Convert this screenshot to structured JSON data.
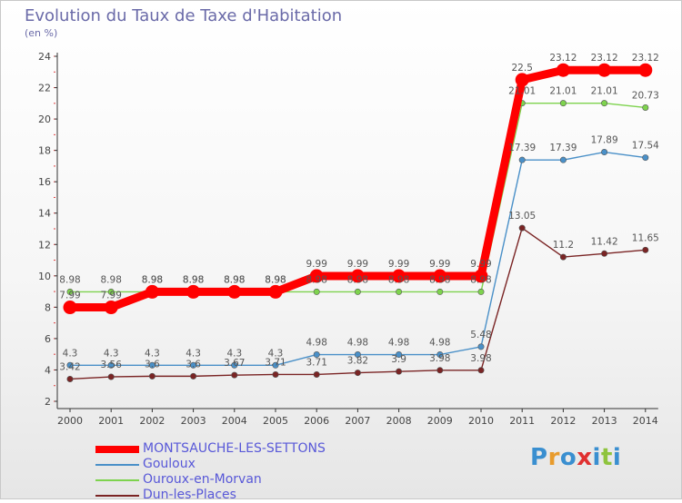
{
  "chart_data": {
    "type": "line",
    "title": "Evolution du Taux de Taxe d'Habitation",
    "ylabel": "(en %)",
    "ylim": [
      2,
      24
    ],
    "yticks": [
      2,
      4,
      6,
      8,
      10,
      12,
      14,
      16,
      18,
      20,
      22,
      24
    ],
    "x": [
      "2000",
      "2001",
      "2002",
      "2003",
      "2004",
      "2005",
      "2006",
      "2007",
      "2008",
      "2009",
      "2010",
      "2011",
      "2012",
      "2013",
      "2014"
    ],
    "grid": false,
    "legend_position": "bottom-left",
    "series": [
      {
        "name": "MONTSAUCHE-LES-SETTONS",
        "color": "#ff0000",
        "values": [
          7.99,
          7.99,
          8.98,
          8.98,
          8.98,
          8.98,
          9.99,
          9.99,
          9.99,
          9.99,
          9.99,
          22.5,
          23.12,
          23.12,
          23.12
        ],
        "labels": [
          "7.99",
          "7.99",
          "8.98",
          "8.98",
          "8.98",
          "8.98",
          "9.99",
          "9.99",
          "9.99",
          "9.99",
          "9.99",
          "22.5",
          "23.12",
          "23.12",
          "23.12"
        ]
      },
      {
        "name": "Gouloux",
        "color": "#4a90c8",
        "values": [
          4.3,
          4.3,
          4.3,
          4.3,
          4.3,
          4.3,
          4.98,
          4.98,
          4.98,
          4.98,
          5.48,
          17.39,
          17.39,
          17.89,
          17.54
        ],
        "labels": [
          "4.3",
          "4.3",
          "4.3",
          "4.3",
          "4.3",
          "4.3",
          "4.98",
          "4.98",
          "4.98",
          "4.98",
          "5.48",
          "17.39",
          "17.39",
          "17.89",
          "17.54"
        ]
      },
      {
        "name": "Ouroux-en-Morvan",
        "color": "#7ed34e",
        "values": [
          8.98,
          8.98,
          8.98,
          8.98,
          8.98,
          8.98,
          8.98,
          8.98,
          8.98,
          8.98,
          8.98,
          21.01,
          21.01,
          21.01,
          20.73
        ],
        "labels": [
          "8.98",
          "8.98",
          "8.98",
          "8.98",
          "8.98",
          "8.98",
          "8.98",
          "8.98",
          "8.98",
          "8.98",
          "8.98",
          "21.01",
          "21.01",
          "21.01",
          "20.73"
        ]
      },
      {
        "name": "Dun-les-Places",
        "color": "#7a2424",
        "values": [
          3.42,
          3.56,
          3.6,
          3.6,
          3.67,
          3.71,
          3.71,
          3.82,
          3.9,
          3.98,
          3.98,
          13.05,
          11.2,
          11.42,
          11.65
        ],
        "labels": [
          "3.42",
          "3.56",
          "3.6",
          "3.6",
          "3.67",
          "3.71",
          "3.71",
          "3.82",
          "3.9",
          "3.98",
          "3.98",
          "13.05",
          "11.2",
          "11.42",
          "11.65"
        ]
      }
    ]
  },
  "legend": [
    {
      "label": "MONTSAUCHE-LES-SETTONS",
      "color": "#ff0000"
    },
    {
      "label": "Gouloux",
      "color": "#4a90c8"
    },
    {
      "label": "Ouroux-en-Morvan",
      "color": "#7ed34e"
    },
    {
      "label": "Dun-les-Places",
      "color": "#7a2424"
    }
  ],
  "logo": {
    "text": "Proxiti",
    "colors": [
      "#3a8fd0",
      "#e89b2c",
      "#3a8fd0",
      "#e03030",
      "#3a8fd0",
      "#8fc43e",
      "#3a8fd0"
    ]
  }
}
